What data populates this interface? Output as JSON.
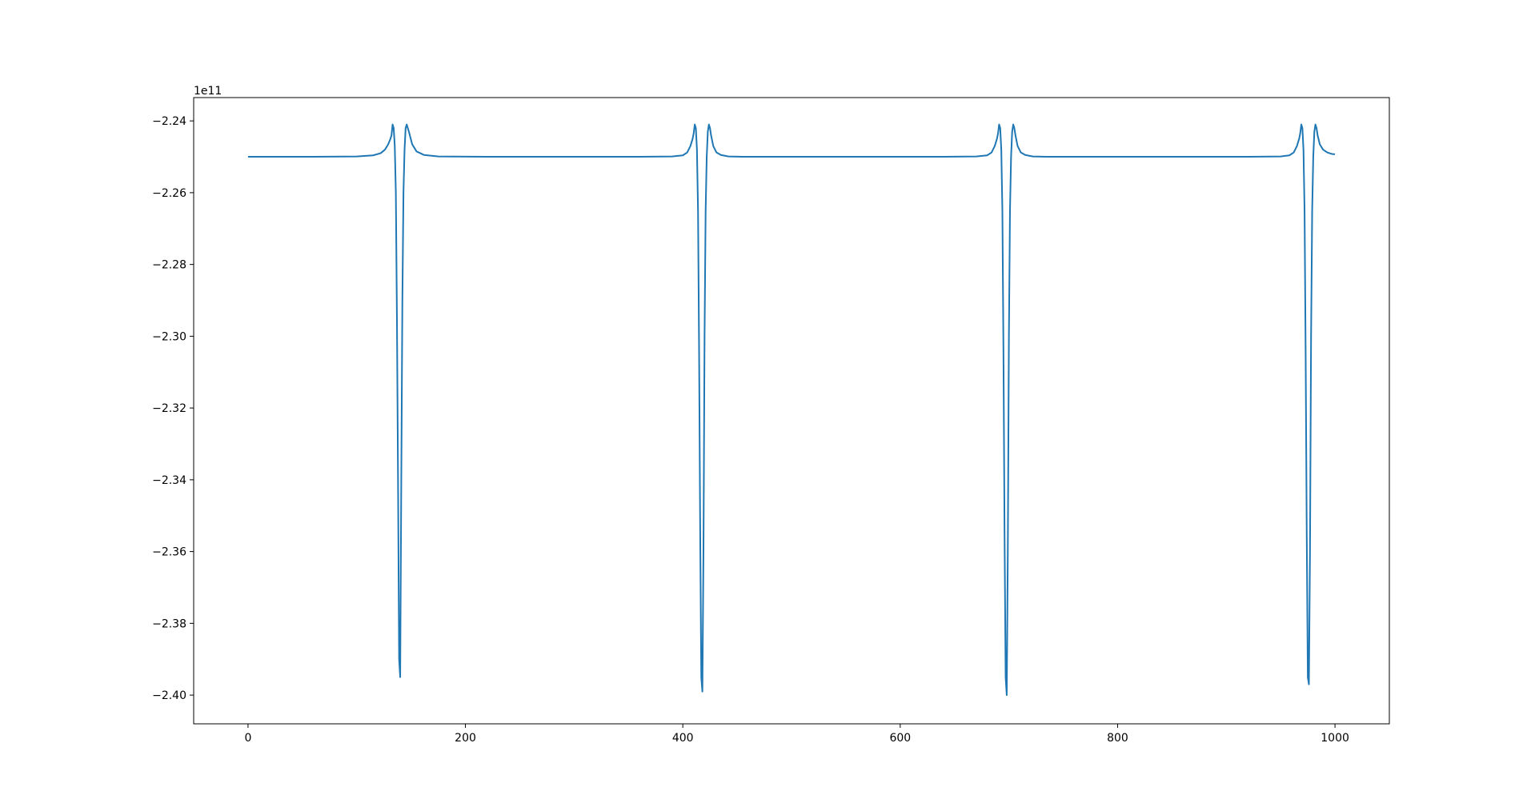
{
  "chart_data": {
    "type": "line",
    "title": "",
    "xlabel": "",
    "ylabel": "",
    "y_offset_label": "1e11",
    "xlim": [
      -50,
      1050
    ],
    "ylim": [
      -2.408,
      -2.2335
    ],
    "x_ticks": [
      0,
      200,
      400,
      600,
      800,
      1000
    ],
    "x_tick_labels": [
      "0",
      "200",
      "400",
      "600",
      "800",
      "1000"
    ],
    "y_ticks": [
      -2.24,
      -2.26,
      -2.28,
      -2.3,
      -2.32,
      -2.34,
      -2.36,
      -2.38,
      -2.4
    ],
    "y_tick_labels": [
      "−2.24",
      "−2.26",
      "−2.28",
      "−2.30",
      "−2.32",
      "−2.34",
      "−2.36",
      "−2.38",
      "−2.40"
    ],
    "grid": false,
    "colors": {
      "line": "#1f77b4",
      "axes": "#000000"
    },
    "series": [
      {
        "x": [
          0,
          60,
          100,
          115,
          122,
          126,
          129,
          131,
          132,
          133,
          134,
          135,
          136,
          137,
          138,
          139,
          140,
          141,
          142,
          143,
          144,
          145,
          146,
          148,
          151,
          155,
          162,
          175,
          220,
          300,
          360,
          390,
          400,
          404,
          407,
          409,
          410,
          411,
          412,
          413,
          414,
          415,
          416,
          417,
          418,
          419,
          420,
          421,
          422,
          423,
          424,
          425,
          426,
          428,
          431,
          435,
          442,
          455,
          500,
          580,
          640,
          670,
          680,
          684,
          687,
          689,
          690,
          691,
          692,
          693,
          694,
          695,
          696,
          697,
          698,
          699,
          700,
          701,
          702,
          703,
          704,
          705,
          706,
          708,
          711,
          715,
          722,
          735,
          780,
          860,
          920,
          950,
          958,
          962,
          965,
          967,
          968,
          969,
          970,
          971,
          972,
          973,
          974,
          975,
          976,
          977,
          978,
          979,
          980,
          981,
          982,
          983,
          984,
          986,
          989,
          993,
          997,
          1000
        ],
        "y": [
          -2.25,
          -2.25,
          -2.2499,
          -2.2496,
          -2.249,
          -2.248,
          -2.2465,
          -2.245,
          -2.244,
          -2.241,
          -2.242,
          -2.247,
          -2.26,
          -2.295,
          -2.34,
          -2.39,
          -2.395,
          -2.34,
          -2.29,
          -2.26,
          -2.248,
          -2.242,
          -2.241,
          -2.243,
          -2.2465,
          -2.2485,
          -2.2495,
          -2.2499,
          -2.25,
          -2.25,
          -2.25,
          -2.2499,
          -2.2496,
          -2.2488,
          -2.247,
          -2.245,
          -2.2435,
          -2.241,
          -2.242,
          -2.248,
          -2.265,
          -2.305,
          -2.355,
          -2.395,
          -2.399,
          -2.36,
          -2.3,
          -2.265,
          -2.25,
          -2.243,
          -2.241,
          -2.242,
          -2.244,
          -2.247,
          -2.2488,
          -2.2495,
          -2.2499,
          -2.25,
          -2.25,
          -2.25,
          -2.25,
          -2.2499,
          -2.2496,
          -2.2488,
          -2.247,
          -2.245,
          -2.2435,
          -2.241,
          -2.242,
          -2.248,
          -2.265,
          -2.305,
          -2.355,
          -2.395,
          -2.4,
          -2.36,
          -2.3,
          -2.265,
          -2.25,
          -2.243,
          -2.241,
          -2.242,
          -2.244,
          -2.247,
          -2.2488,
          -2.2495,
          -2.2499,
          -2.25,
          -2.25,
          -2.25,
          -2.25,
          -2.2499,
          -2.2496,
          -2.2488,
          -2.247,
          -2.245,
          -2.2435,
          -2.241,
          -2.242,
          -2.248,
          -2.265,
          -2.305,
          -2.355,
          -2.395,
          -2.397,
          -2.36,
          -2.3,
          -2.265,
          -2.25,
          -2.243,
          -2.241,
          -2.242,
          -2.244,
          -2.2465,
          -2.248,
          -2.2488,
          -2.2492,
          -2.2493
        ]
      }
    ]
  }
}
